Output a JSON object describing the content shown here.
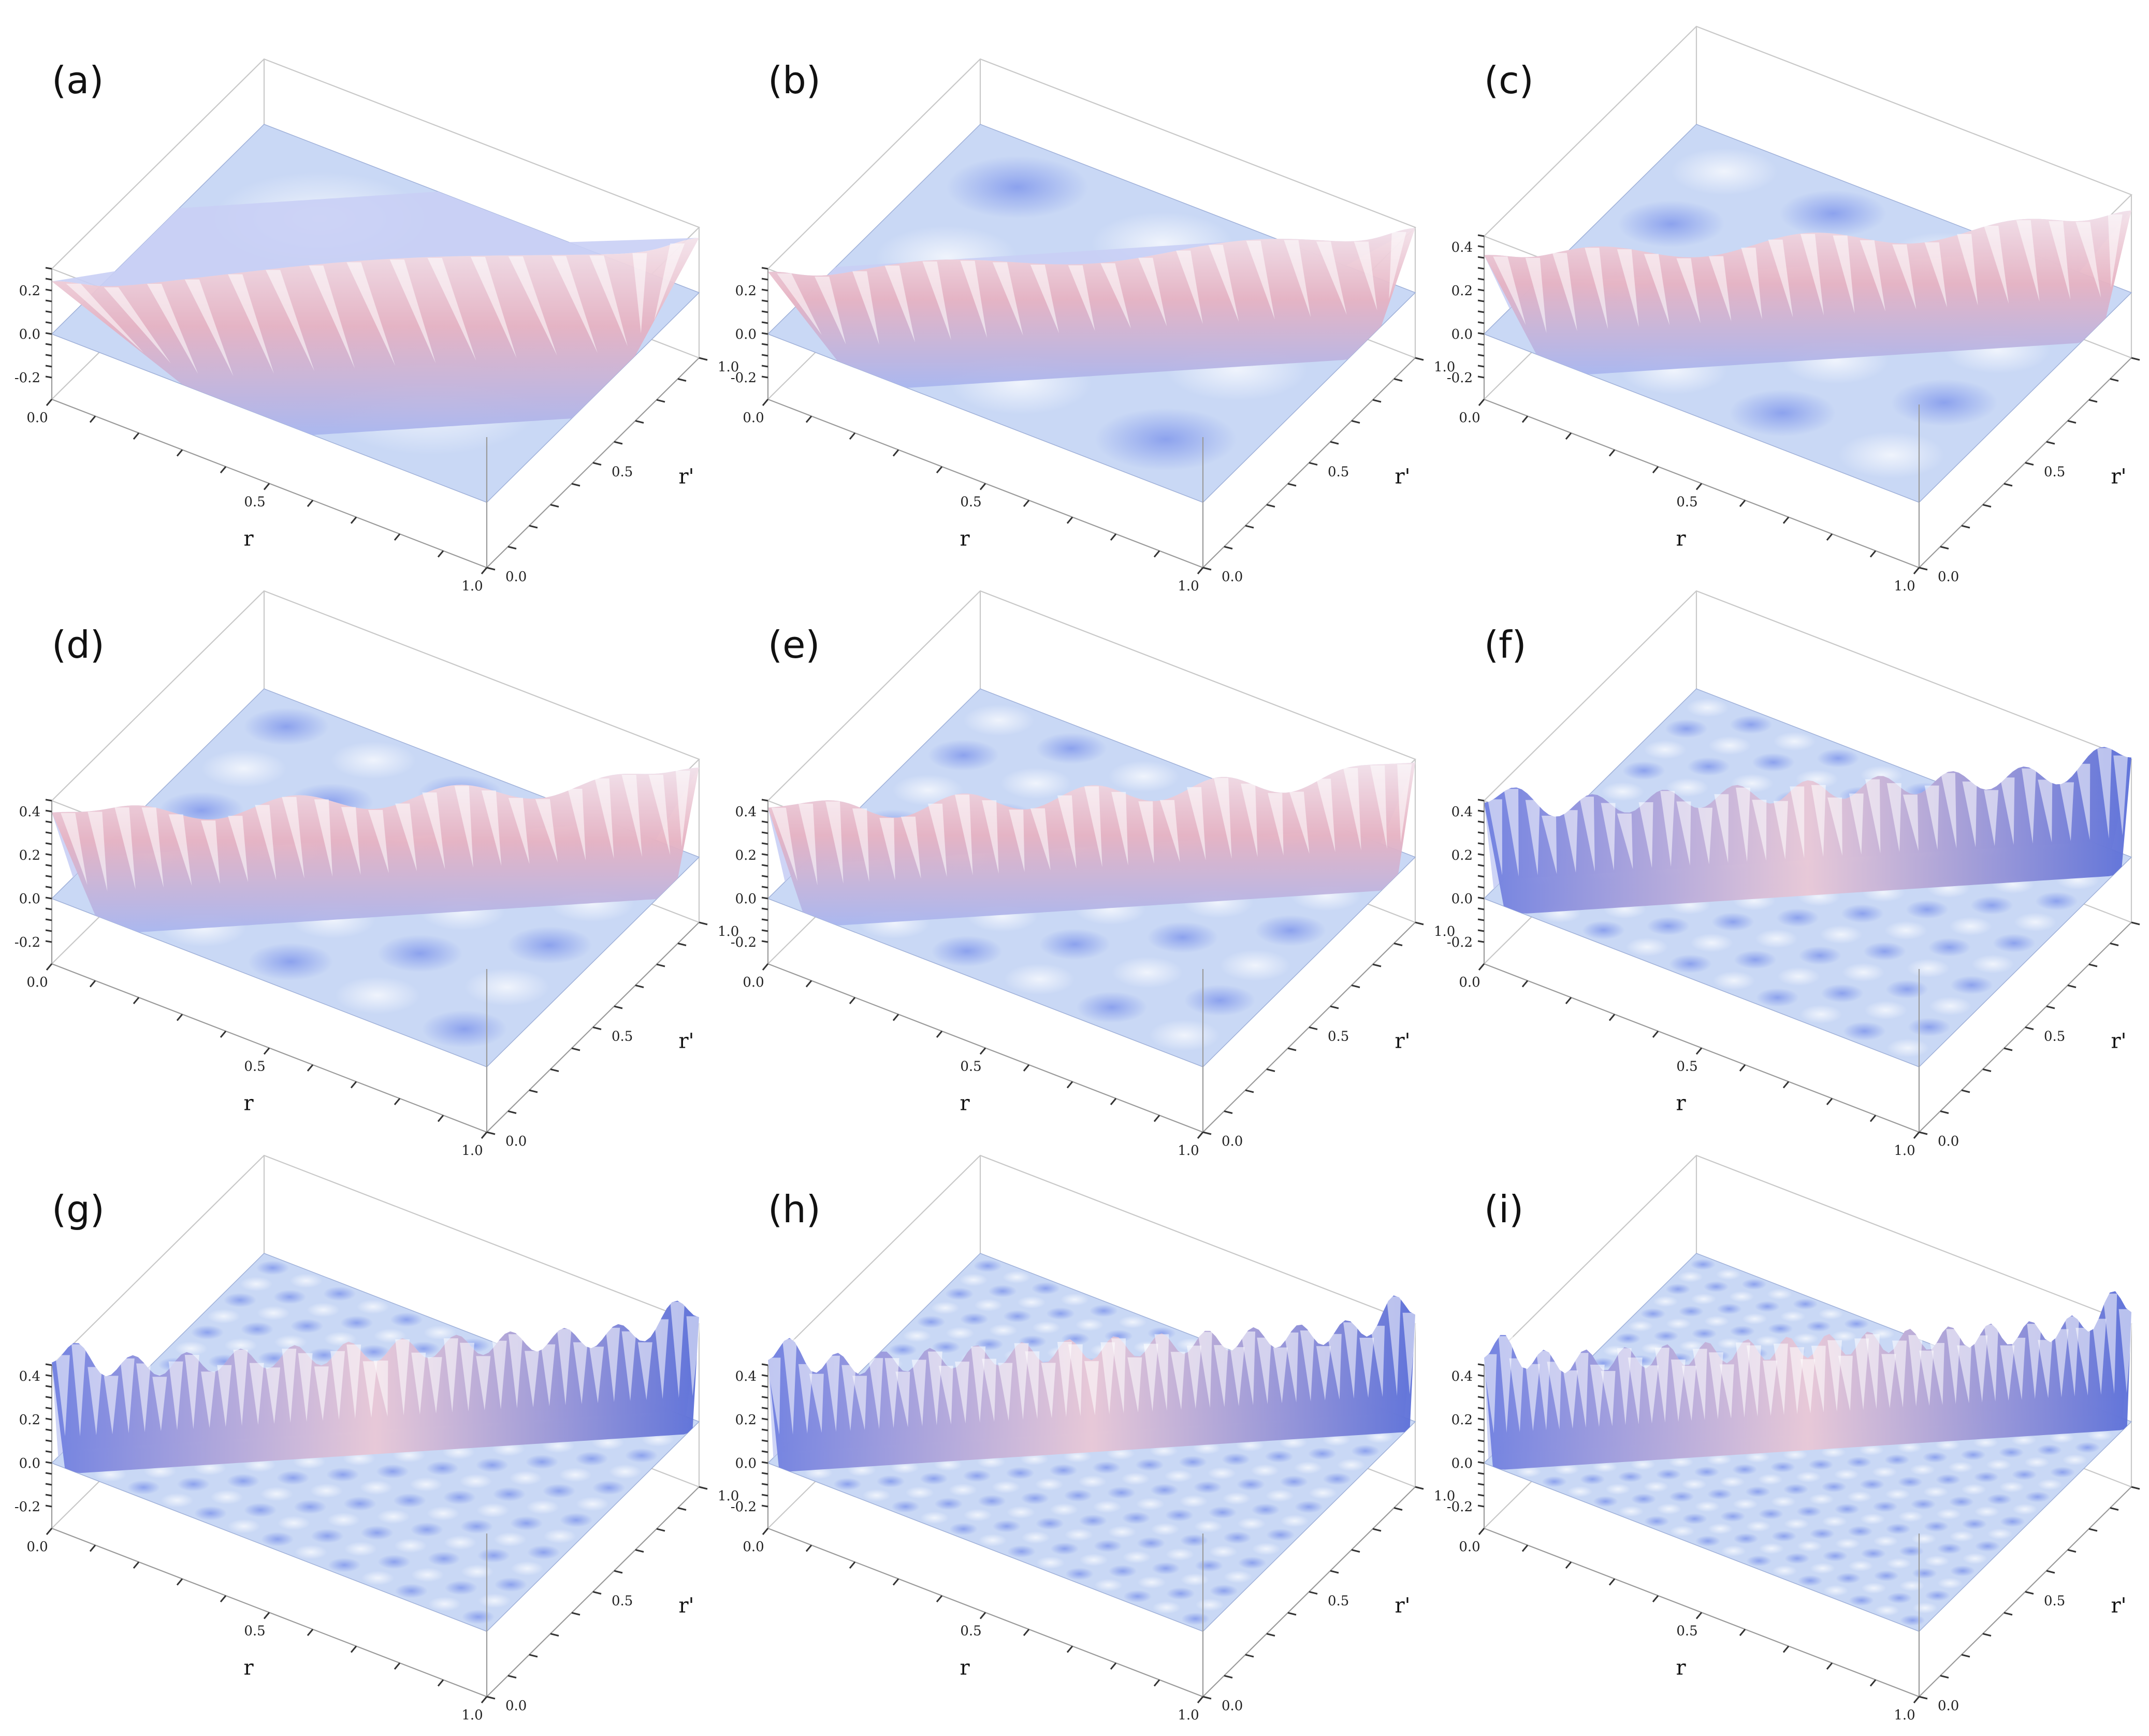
{
  "chart_data": {
    "type": "surface3d",
    "layout": "3x3 grid of 3D surface plots",
    "axes": {
      "x_label": "r",
      "y_label": "r'",
      "x_ticks": [
        "0.0",
        "0.5",
        "1.0"
      ],
      "y_ticks": [
        "0.0",
        "0.5",
        "1.0"
      ]
    },
    "colors": {
      "low": "#7f96f0",
      "mid": "#dfe6fa",
      "high": "#e8b6c4",
      "base": "#c9d8f5"
    },
    "panels": [
      {
        "label": "(a)",
        "z_ticks": [
          "-0.2",
          "0.0",
          "0.2"
        ],
        "zlim": [
          -0.3,
          0.3
        ],
        "peak": 0.22,
        "ridge_width": 0.3,
        "oscillations": 1
      },
      {
        "label": "(b)",
        "z_ticks": [
          "-0.2",
          "0.0",
          "0.2"
        ],
        "zlim": [
          -0.3,
          0.3
        ],
        "peak": 0.26,
        "ridge_width": 0.16,
        "oscillations": 2
      },
      {
        "label": "(c)",
        "z_ticks": [
          "-0.2",
          "0.0",
          "0.2",
          "0.4"
        ],
        "zlim": [
          -0.3,
          0.45
        ],
        "peak": 0.33,
        "ridge_width": 0.12,
        "oscillations": 3
      },
      {
        "label": "(d)",
        "z_ticks": [
          "-0.2",
          "0.0",
          "0.2",
          "0.4"
        ],
        "zlim": [
          -0.3,
          0.45
        ],
        "peak": 0.36,
        "ridge_width": 0.1,
        "oscillations": 4
      },
      {
        "label": "(e)",
        "z_ticks": [
          "-0.2",
          "0.0",
          "0.2",
          "0.4"
        ],
        "zlim": [
          -0.3,
          0.45
        ],
        "peak": 0.38,
        "ridge_width": 0.08,
        "oscillations": 5
      },
      {
        "label": "(f)",
        "z_ticks": [
          "-0.2",
          "0.0",
          "0.2",
          "0.4"
        ],
        "zlim": [
          -0.3,
          0.45
        ],
        "peak": 0.4,
        "ridge_width": 0.045,
        "oscillations": 9
      },
      {
        "label": "(g)",
        "z_ticks": [
          "-0.2",
          "0.0",
          "0.2",
          "0.4"
        ],
        "zlim": [
          -0.3,
          0.45
        ],
        "peak": 0.42,
        "ridge_width": 0.03,
        "oscillations": 12
      },
      {
        "label": "(h)",
        "z_ticks": [
          "-0.2",
          "0.0",
          "0.2",
          "0.4"
        ],
        "zlim": [
          -0.3,
          0.45
        ],
        "peak": 0.43,
        "ridge_width": 0.025,
        "oscillations": 14
      },
      {
        "label": "(i)",
        "z_ticks": [
          "-0.2",
          "0.0",
          "0.2",
          "0.4"
        ],
        "zlim": [
          -0.3,
          0.45
        ],
        "peak": 0.44,
        "ridge_width": 0.02,
        "oscillations": 16
      }
    ]
  }
}
